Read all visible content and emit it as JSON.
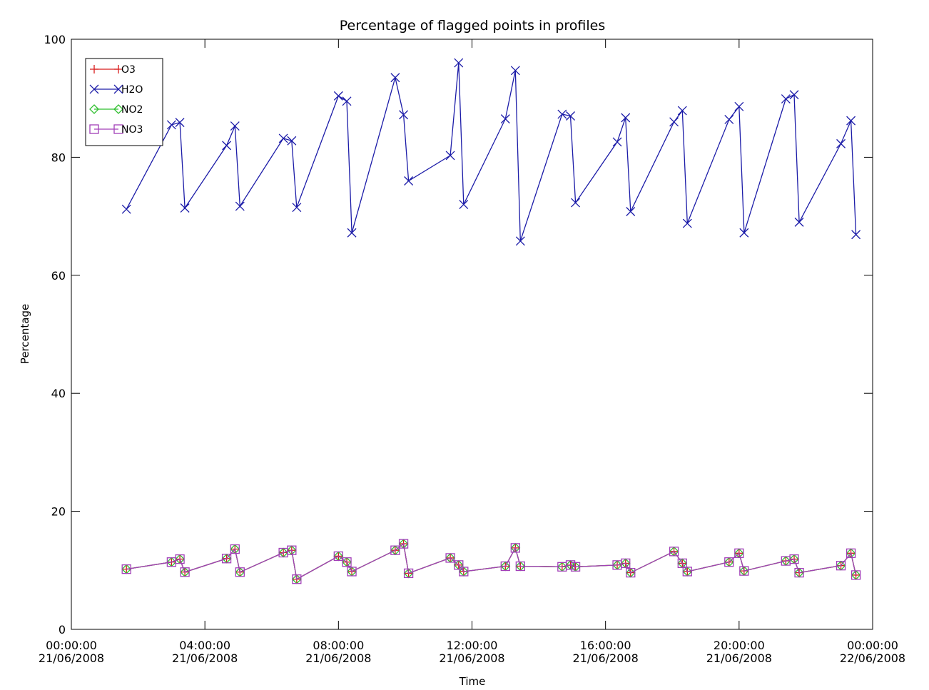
{
  "chart_data": {
    "type": "line",
    "title": "Percentage of flagged points in profiles",
    "xlabel": "Time",
    "ylabel": "Percentage",
    "ylim": [
      0,
      100
    ],
    "yticks": [
      "0",
      "20",
      "40",
      "60",
      "80",
      "100"
    ],
    "xlim_hours": [
      0,
      24
    ],
    "xticks": [
      {
        "time": "00:00:00",
        "date": "21/06/2008"
      },
      {
        "time": "04:00:00",
        "date": "21/06/2008"
      },
      {
        "time": "08:00:00",
        "date": "21/06/2008"
      },
      {
        "time": "12:00:00",
        "date": "21/06/2008"
      },
      {
        "time": "16:00:00",
        "date": "21/06/2008"
      },
      {
        "time": "20:00:00",
        "date": "21/06/2008"
      },
      {
        "time": "00:00:00",
        "date": "22/06/2008"
      }
    ],
    "grid": false,
    "legend_position": "top-left",
    "series": [
      {
        "name": "O3",
        "color": "#d81a1a",
        "marker": "plus",
        "x": [
          1.65,
          3.0,
          3.25,
          3.4,
          4.65,
          4.9,
          5.05,
          6.35,
          6.6,
          6.75,
          8.0,
          8.25,
          8.4,
          9.7,
          9.95,
          10.1,
          11.35,
          11.6,
          11.75,
          13.0,
          13.3,
          13.45,
          14.7,
          14.95,
          15.1,
          16.35,
          16.6,
          16.75,
          18.05,
          18.3,
          18.45,
          19.7,
          20.0,
          20.15,
          21.4,
          21.65,
          21.8,
          23.05,
          23.35,
          23.5
        ],
        "y": [
          10.2,
          11.4,
          11.9,
          9.7,
          12.0,
          13.6,
          9.7,
          13.0,
          13.4,
          8.5,
          12.4,
          11.4,
          9.8,
          13.4,
          14.5,
          9.5,
          12.1,
          10.9,
          9.8,
          10.7,
          13.8,
          10.7,
          10.6,
          10.9,
          10.6,
          10.9,
          11.2,
          9.6,
          13.2,
          11.2,
          9.8,
          11.4,
          12.9,
          9.9,
          11.6,
          11.9,
          9.6,
          10.8,
          12.9,
          9.2
        ]
      },
      {
        "name": "H2O",
        "color": "#1c1ca8",
        "marker": "x",
        "x": [
          1.65,
          3.0,
          3.25,
          3.4,
          4.65,
          4.9,
          5.05,
          6.35,
          6.6,
          6.75,
          8.0,
          8.25,
          8.4,
          9.7,
          9.95,
          10.1,
          11.35,
          11.6,
          11.75,
          13.0,
          13.3,
          13.45,
          14.7,
          14.95,
          15.1,
          16.35,
          16.6,
          16.75,
          18.05,
          18.3,
          18.45,
          19.7,
          20.0,
          20.15,
          21.4,
          21.65,
          21.8,
          23.05,
          23.35,
          23.5
        ],
        "y": [
          71.2,
          85.5,
          85.9,
          71.4,
          82.0,
          85.3,
          71.7,
          83.2,
          82.8,
          71.5,
          90.4,
          89.5,
          67.2,
          93.5,
          87.2,
          76.0,
          80.3,
          96.0,
          72.0,
          86.5,
          94.7,
          65.8,
          87.3,
          87.0,
          72.3,
          82.6,
          86.7,
          70.8,
          86.0,
          87.9,
          68.8,
          86.4,
          88.6,
          67.2,
          89.9,
          90.6,
          69.0,
          82.3,
          86.2,
          66.9
        ]
      },
      {
        "name": "NO2",
        "color": "#2fbf2f",
        "marker": "diamond",
        "x": [
          1.65,
          3.0,
          3.25,
          3.4,
          4.65,
          4.9,
          5.05,
          6.35,
          6.6,
          6.75,
          8.0,
          8.25,
          8.4,
          9.7,
          9.95,
          10.1,
          11.35,
          11.6,
          11.75,
          13.0,
          13.3,
          13.45,
          14.7,
          14.95,
          15.1,
          16.35,
          16.6,
          16.75,
          18.05,
          18.3,
          18.45,
          19.7,
          20.0,
          20.15,
          21.4,
          21.65,
          21.8,
          23.05,
          23.35,
          23.5
        ],
        "y": [
          10.2,
          11.4,
          11.9,
          9.7,
          12.0,
          13.6,
          9.7,
          13.0,
          13.4,
          8.5,
          12.4,
          11.4,
          9.8,
          13.4,
          14.5,
          9.5,
          12.1,
          10.9,
          9.8,
          10.7,
          13.8,
          10.7,
          10.6,
          10.9,
          10.6,
          10.9,
          11.2,
          9.6,
          13.2,
          11.2,
          9.8,
          11.4,
          12.9,
          9.9,
          11.6,
          11.9,
          9.6,
          10.8,
          12.9,
          9.2
        ]
      },
      {
        "name": "NO3",
        "color": "#a23fb8",
        "marker": "square",
        "x": [
          1.65,
          3.0,
          3.25,
          3.4,
          4.65,
          4.9,
          5.05,
          6.35,
          6.6,
          6.75,
          8.0,
          8.25,
          8.4,
          9.7,
          9.95,
          10.1,
          11.35,
          11.6,
          11.75,
          13.0,
          13.3,
          13.45,
          14.7,
          14.95,
          15.1,
          16.35,
          16.6,
          16.75,
          18.05,
          18.3,
          18.45,
          19.7,
          20.0,
          20.15,
          21.4,
          21.65,
          21.8,
          23.05,
          23.35,
          23.5
        ],
        "y": [
          10.2,
          11.4,
          11.9,
          9.7,
          12.0,
          13.6,
          9.7,
          13.0,
          13.4,
          8.5,
          12.4,
          11.4,
          9.8,
          13.4,
          14.5,
          9.5,
          12.1,
          10.9,
          9.8,
          10.7,
          13.8,
          10.7,
          10.6,
          10.9,
          10.6,
          10.9,
          11.2,
          9.6,
          13.2,
          11.2,
          9.8,
          11.4,
          12.9,
          9.9,
          11.6,
          11.9,
          9.6,
          10.8,
          12.9,
          9.2
        ]
      }
    ]
  }
}
